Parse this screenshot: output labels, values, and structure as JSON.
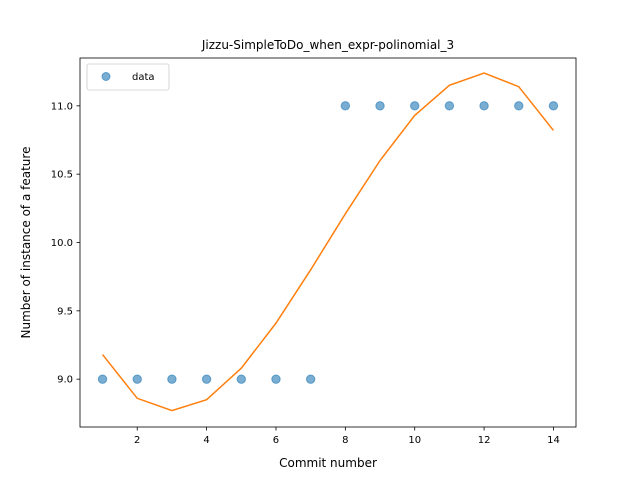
{
  "chart_data": {
    "type": "scatter",
    "title": "Jizzu-SimpleToDo_when_expr-polinomial_3",
    "xlabel": "Commit number",
    "ylabel": "Number of instance of a feature",
    "xlim": [
      0.35,
      14.65
    ],
    "ylim": [
      8.65,
      11.35
    ],
    "xticks": [
      2,
      4,
      6,
      8,
      10,
      12,
      14
    ],
    "yticks": [
      9.0,
      9.5,
      10.0,
      10.5,
      11.0
    ],
    "xtick_labels": [
      "2",
      "4",
      "6",
      "8",
      "10",
      "12",
      "14"
    ],
    "ytick_labels": [
      "9.0",
      "9.5",
      "10.0",
      "10.5",
      "11.0"
    ],
    "grid": false,
    "legend_position": "top-left",
    "series": [
      {
        "name": "data",
        "kind": "scatter",
        "color": "#1f77b4",
        "x": [
          1,
          2,
          3,
          4,
          5,
          6,
          7,
          8,
          9,
          10,
          11,
          12,
          13,
          14
        ],
        "y": [
          9,
          9,
          9,
          9,
          9,
          9,
          9,
          11,
          11,
          11,
          11,
          11,
          11,
          11
        ]
      },
      {
        "kind": "line",
        "color": "#ff7f0e",
        "x": [
          1,
          2,
          3,
          4,
          5,
          6,
          7,
          8,
          9,
          10,
          11,
          12,
          13,
          14
        ],
        "y": [
          9.18,
          8.86,
          8.77,
          8.85,
          9.08,
          9.41,
          9.8,
          10.21,
          10.6,
          10.93,
          11.15,
          11.24,
          11.14,
          10.82
        ]
      }
    ]
  }
}
